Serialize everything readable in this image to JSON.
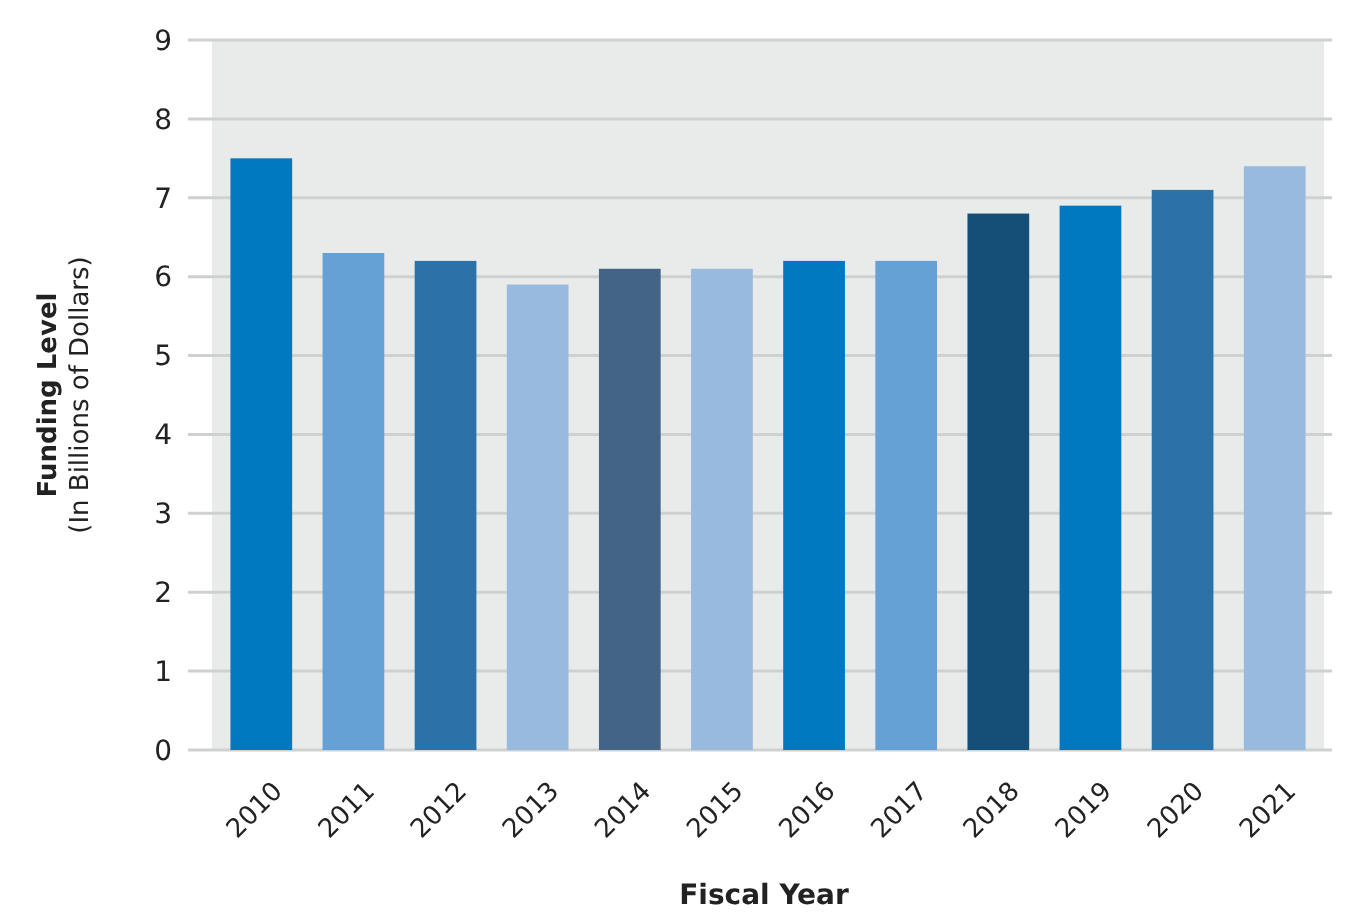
{
  "chart_data": {
    "type": "bar",
    "xlabel": "Fiscal Year",
    "ylabel": "Funding Level\n(In Billions of Dollars)",
    "categories": [
      "2010",
      "2011",
      "2012",
      "2013",
      "2014",
      "2015",
      "2016",
      "2017",
      "2018",
      "2019",
      "2020",
      "2021"
    ],
    "values": [
      7.5,
      6.3,
      6.2,
      5.9,
      6.1,
      6.1,
      6.2,
      6.2,
      6.8,
      6.9,
      7.1,
      7.4
    ],
    "colors": [
      "#0079c1",
      "#66a1d6",
      "#2c72a8",
      "#98badf",
      "#436487",
      "#98badf",
      "#0079c1",
      "#66a1d6",
      "#134f76",
      "#0079c1",
      "#2c72a8",
      "#98badf"
    ],
    "ylim": [
      0,
      9
    ],
    "yticks": [
      0,
      1,
      2,
      3,
      4,
      5,
      6,
      7,
      8,
      9
    ],
    "grid": "y"
  }
}
